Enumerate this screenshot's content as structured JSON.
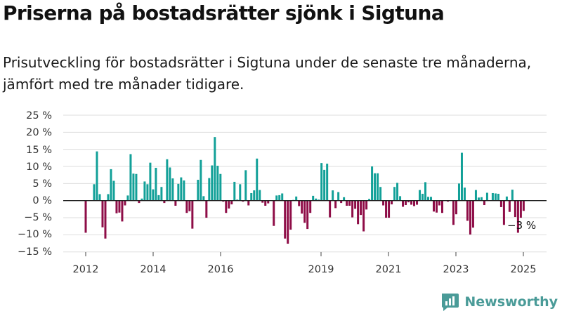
{
  "title": "Priserna på bostadsrätter sjönk i Sigtuna",
  "subtitle": "Prisutveckling för bostadsrätter i Sigtuna under de senaste tre månaderna, jämfört med tre månader tidigare.",
  "brand": "Newsworthy",
  "colors": {
    "positive": "#12a098",
    "negative": "#8e0d47",
    "grid": "#dddddd",
    "zero": "#222222",
    "brand": "#4a9b98"
  },
  "chart_data": {
    "type": "bar",
    "x_axis": {
      "label": "",
      "ticks": [
        "2012",
        "2014",
        "2016",
        "2019",
        "2021",
        "2023",
        "2025"
      ]
    },
    "y_axis": {
      "label": "",
      "unit": "%",
      "ylim": [
        -15,
        25
      ],
      "ticks": [
        "25 %",
        "20 %",
        "15 %",
        "10 %",
        "5 %",
        "0 %",
        "−5 %",
        "−10 %",
        "−15 %"
      ]
    },
    "grid": true,
    "end_label": "−3 %",
    "values": [
      -9.4,
      0,
      0,
      4.8,
      14.4,
      1.9,
      -7.8,
      -11.1,
      1.9,
      9.2,
      5.8,
      -3.7,
      -3.5,
      -6.1,
      -1.4,
      1.5,
      13.6,
      7.9,
      7.8,
      -0.7,
      0.6,
      5.6,
      4.8,
      11.1,
      3.3,
      9.6,
      1.6,
      4,
      -0.7,
      12.1,
      9.7,
      6.5,
      -1.5,
      4.9,
      6.8,
      5.9,
      -3.6,
      -3.1,
      -8.2,
      0,
      6.1,
      11.9,
      1.3,
      -5,
      6.6,
      10.3,
      18.6,
      10.2,
      7.8,
      -0.3,
      -3.6,
      -2.3,
      -1.1,
      5.5,
      0.3,
      4.8,
      -0.3,
      8.9,
      -1.4,
      2.2,
      3,
      12.3,
      3.1,
      -0.6,
      -1.5,
      -0.8,
      0,
      -7.4,
      1.5,
      1.6,
      2.1,
      -11.1,
      -12.6,
      -8.5,
      0.2,
      1.2,
      -1.6,
      -3.8,
      -6.5,
      -8.3,
      -3.6,
      1.4,
      0.6,
      0.3,
      11,
      9,
      10.8,
      -4.9,
      3,
      -2.2,
      2.5,
      -0.7,
      1,
      -1.5,
      -1.5,
      -4.9,
      -2.4,
      -6.9,
      -4.2,
      -9,
      -2.6,
      0.5,
      10,
      8,
      8,
      4,
      -1.4,
      -5,
      -5,
      -1.1,
      4,
      5.2,
      1.3,
      -1.8,
      -1.3,
      -0.5,
      -1.2,
      -1.6,
      -1.2,
      3.1,
      2,
      5.4,
      1.1,
      1.1,
      -3.2,
      -3.5,
      -1.4,
      -3.6,
      0,
      -0.3,
      0,
      -7.1,
      -4,
      5,
      14,
      3.8,
      -5.9,
      -9.9,
      -7.9,
      3.1,
      0.9,
      1,
      -1.3,
      2.3,
      0,
      2.2,
      2.1,
      2,
      -1.9,
      -7.1,
      1.2,
      -3.3,
      3.2,
      -4.8,
      -9.4,
      -5,
      -3
    ]
  }
}
